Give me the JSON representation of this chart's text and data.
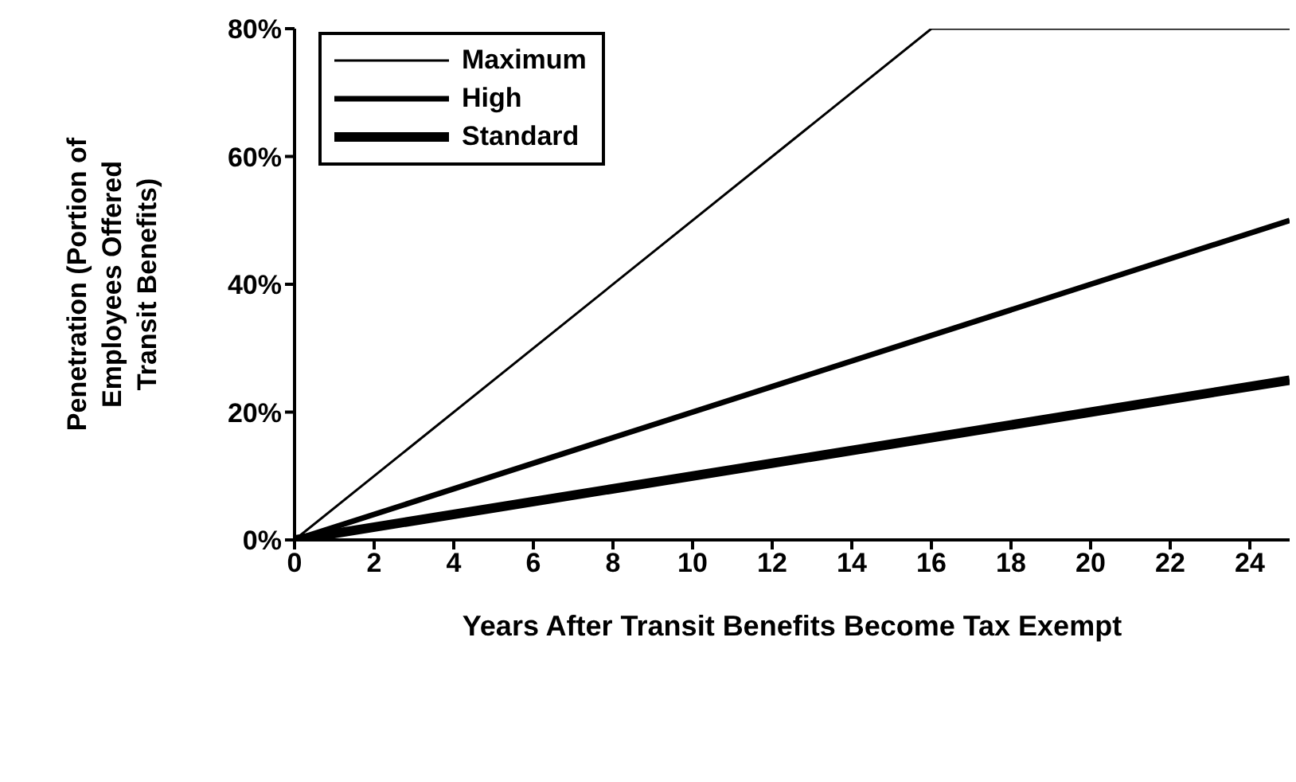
{
  "chart_data": {
    "type": "line",
    "xlabel": "Years After Transit Benefits Become Tax Exempt",
    "ylabel": "Penetration (Portion of Employees Offered Transit Benefits)",
    "series": [
      {
        "name": "Maximum",
        "color": "#000000",
        "x": [
          0,
          16,
          25
        ],
        "values": [
          0,
          80,
          80
        ]
      },
      {
        "name": "High",
        "color": "#000000",
        "x": [
          0,
          25
        ],
        "values": [
          0,
          50
        ]
      },
      {
        "name": "Standard",
        "color": "#000000",
        "x": [
          0,
          25
        ],
        "values": [
          0,
          25
        ]
      }
    ],
    "xlim": [
      0,
      25
    ],
    "xticks": [
      0,
      2,
      4,
      6,
      8,
      10,
      12,
      14,
      16,
      18,
      20,
      22,
      24
    ],
    "ylim": [
      0,
      80
    ],
    "yticks": [
      {
        "value": 0,
        "label": "0%"
      },
      {
        "value": 20,
        "label": "20%"
      },
      {
        "value": 40,
        "label": "40%"
      },
      {
        "value": 60,
        "label": "60%"
      },
      {
        "value": 80,
        "label": "80%"
      }
    ],
    "grid": false,
    "legend": "top left",
    "marker": "none",
    "line_style": "solid"
  }
}
